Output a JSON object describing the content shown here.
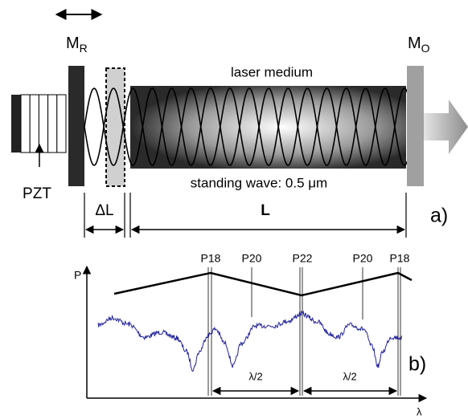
{
  "part_a": {
    "mirror_rear": {
      "main": "M",
      "sub": "R"
    },
    "mirror_out": {
      "main": "M",
      "sub": "O"
    },
    "medium_label": "laser medium",
    "wave_label": "standing wave: 0.5 μm",
    "pzt_label": "PZT",
    "delta_l_label": "ΔL",
    "length_label": "L",
    "panel_label": "a)"
  },
  "part_b": {
    "y_axis_label": "P",
    "x_axis_label": "λ",
    "peaks": [
      "P18",
      "P20",
      "P22",
      "P20",
      "P18"
    ],
    "spacing_labels": [
      "λ/2",
      "λ/2"
    ],
    "panel_label": "b)"
  }
}
